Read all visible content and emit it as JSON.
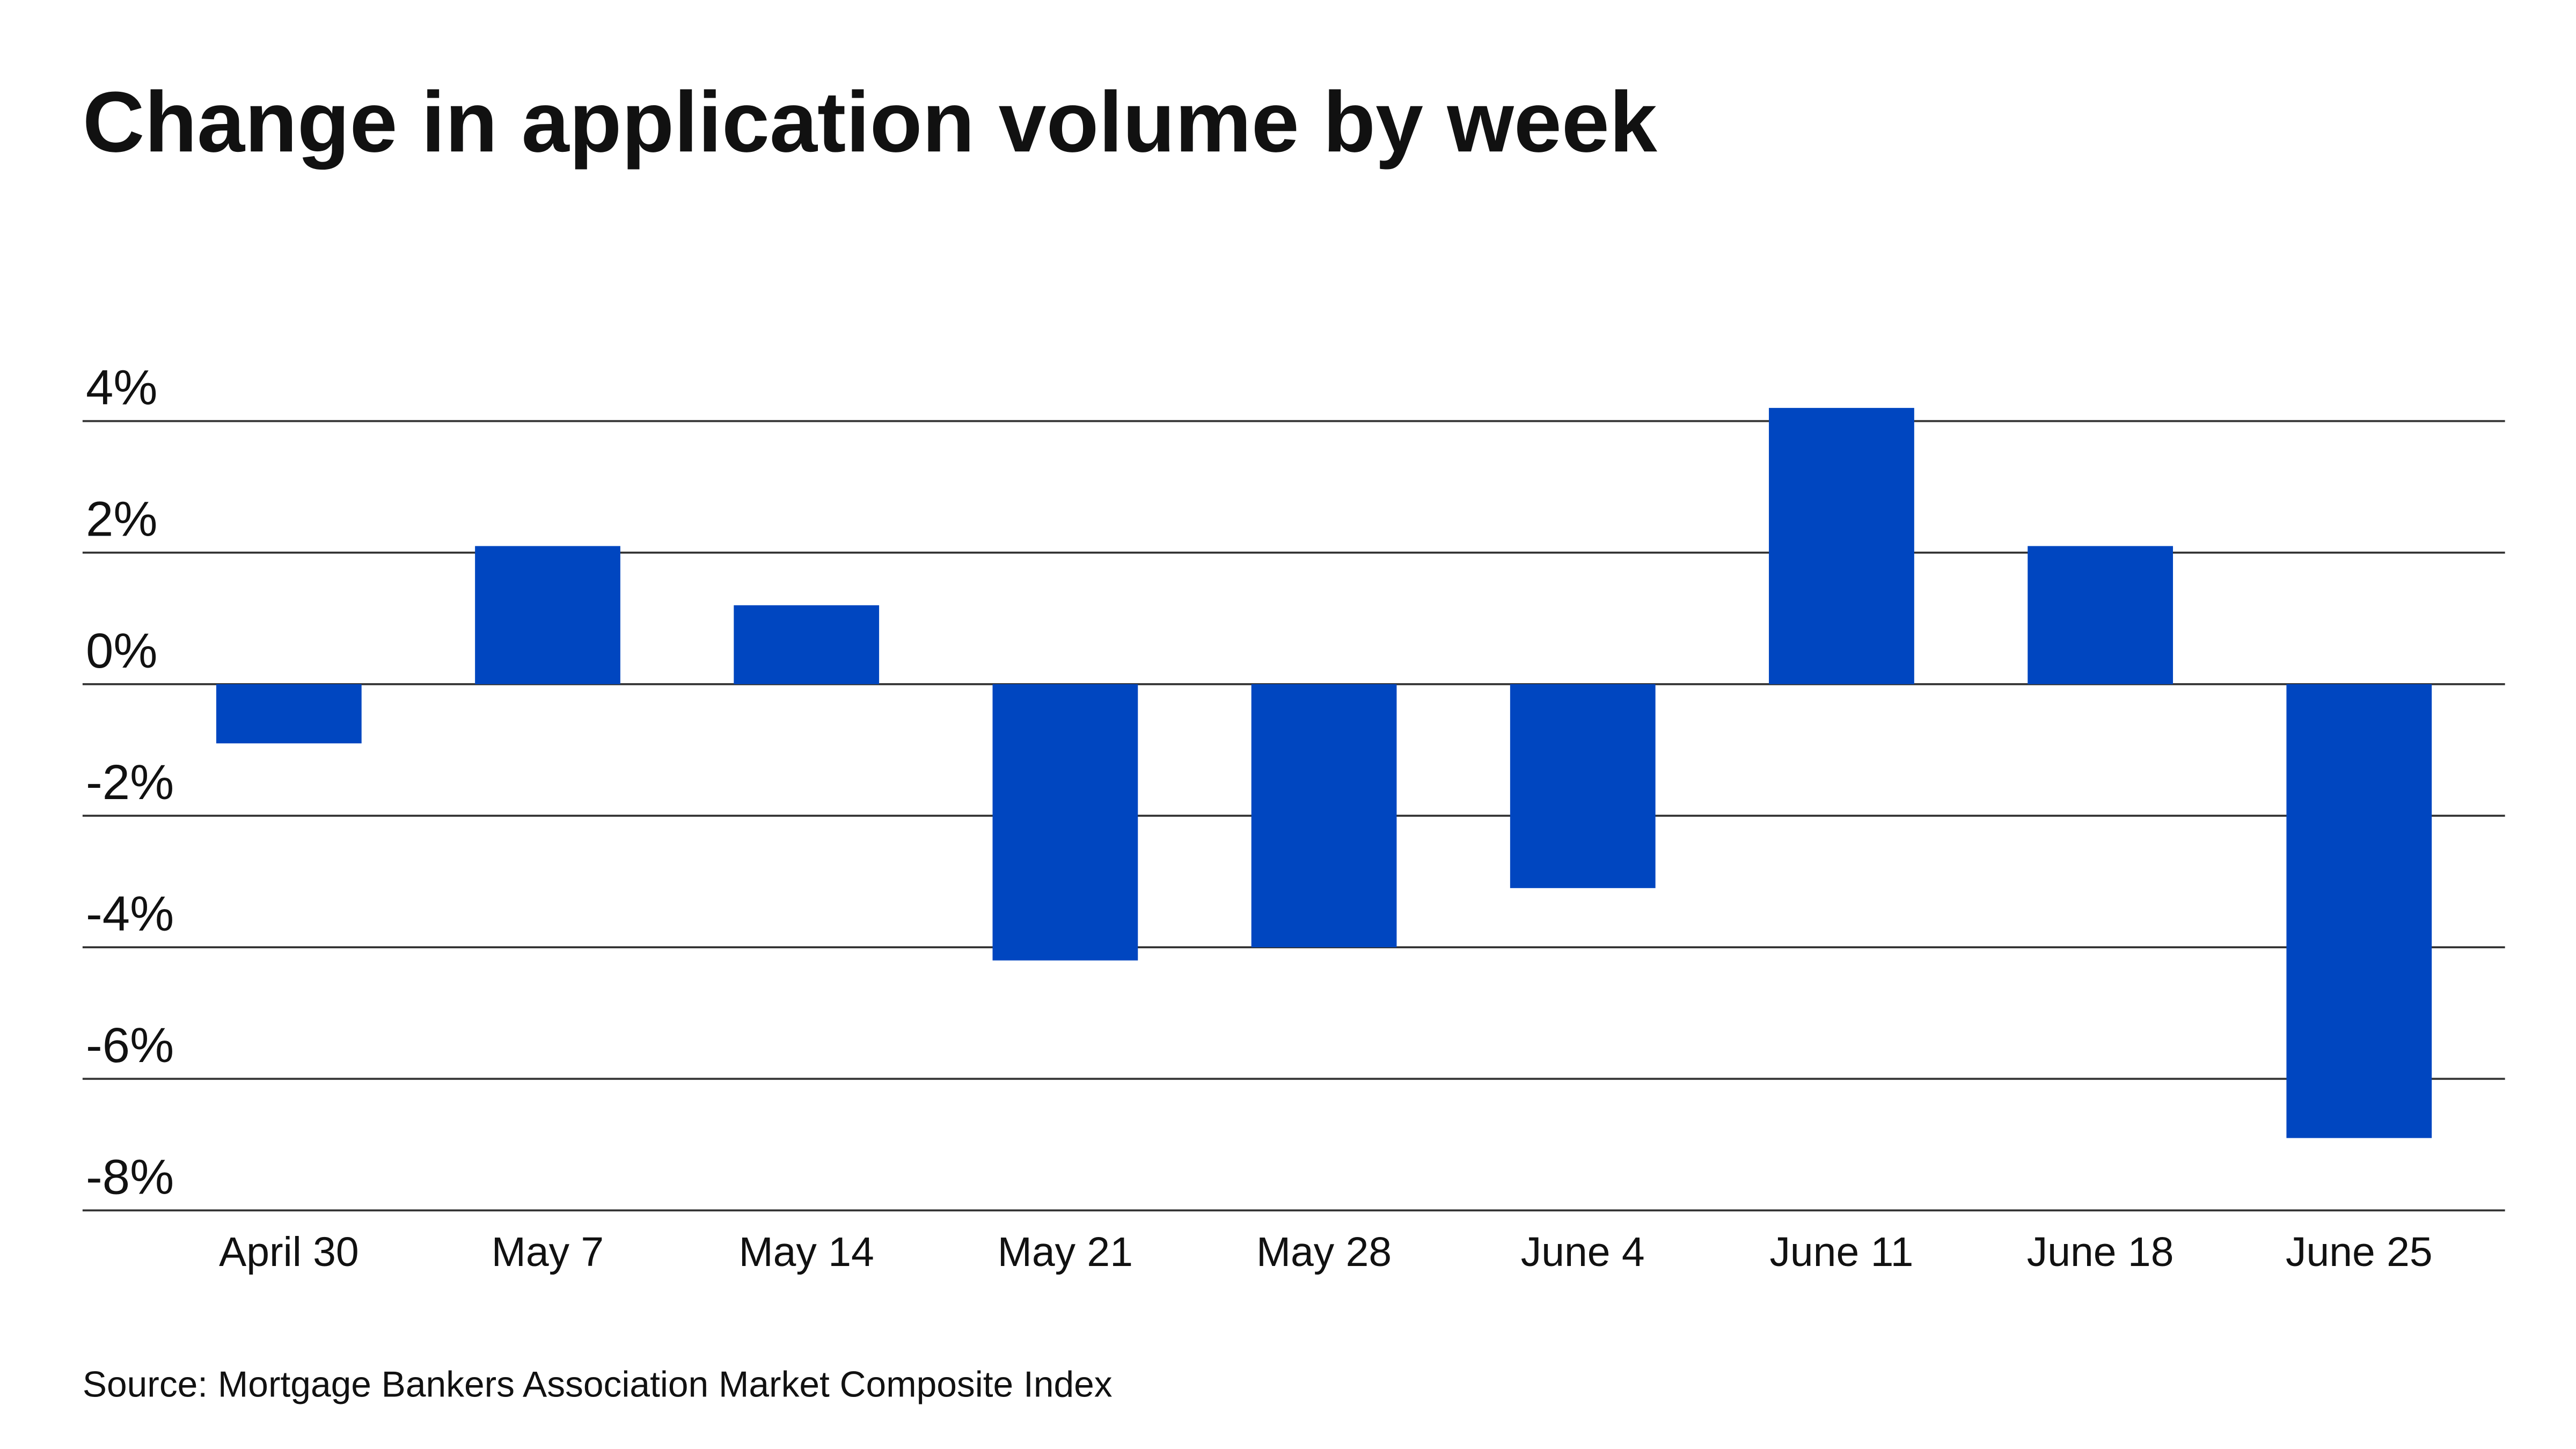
{
  "chart_data": {
    "type": "bar",
    "title": "Change in application volume by week",
    "source": "Source: Mortgage Bankers Association Market Composite Index",
    "categories": [
      "April 30",
      "May 7",
      "May 14",
      "May 21",
      "May 28",
      "June 4",
      "June 11",
      "June 18",
      "June 25"
    ],
    "values": [
      -0.9,
      2.1,
      1.2,
      -4.2,
      -4.0,
      -3.1,
      4.2,
      2.1,
      -6.9
    ],
    "color": "#0046c0",
    "ylim": [
      -8,
      4
    ],
    "yticks": [
      {
        "value": 4,
        "label": "4%"
      },
      {
        "value": 2,
        "label": "2%"
      },
      {
        "value": 0,
        "label": "0%"
      },
      {
        "value": -2,
        "label": "-2%"
      },
      {
        "value": -4,
        "label": "-4%"
      },
      {
        "value": -6,
        "label": "-6%"
      },
      {
        "value": -8,
        "label": "-8%"
      }
    ],
    "grid": true
  }
}
